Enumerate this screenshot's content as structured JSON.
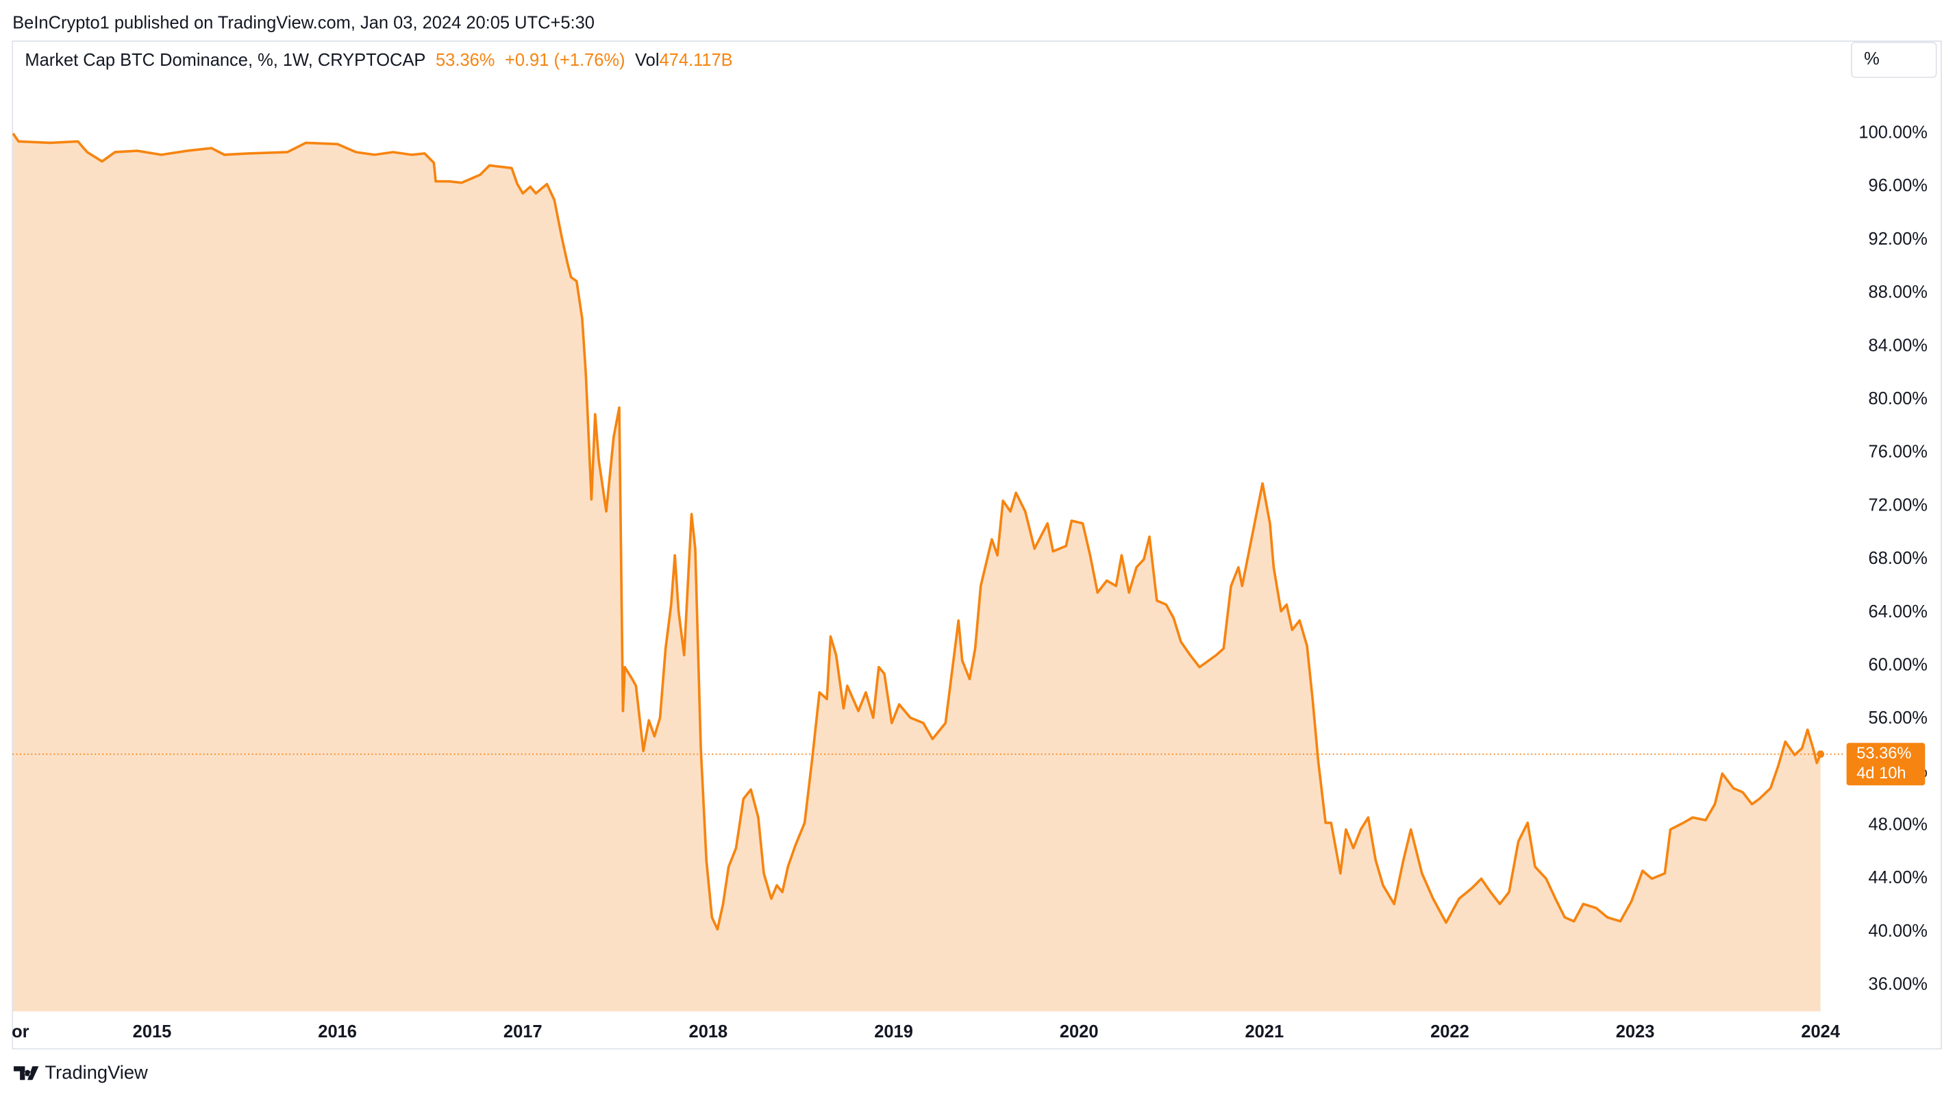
{
  "header": {
    "published": "BeInCrypto1 published on TradingView.com, Jan 03, 2024 20:05 UTC+5:30"
  },
  "chart_data": {
    "type": "area",
    "title": "Market Cap BTC Dominance, %, 1W, CRYPTOCAP",
    "change": "+0.91 (+1.76%)",
    "volume_label": "Vol",
    "volume": "474.117B",
    "current": {
      "value": 53.36,
      "label": "53.36%"
    },
    "countdown": "4d 10h",
    "scale_button": "%",
    "color": "#f68410",
    "fill": "#fce0c6",
    "xlim": [
      2014.247,
      2024.12
    ],
    "ylim": [
      34.03,
      106.75
    ],
    "xticks": [
      {
        "value": 2014.29,
        "label": "or"
      },
      2015,
      2016,
      2017,
      2018,
      2019,
      2020,
      2021,
      2022,
      2023,
      2024
    ],
    "yticks": [
      {
        "value": 36,
        "label": "36.00%"
      },
      {
        "value": 40,
        "label": "40.00%"
      },
      {
        "value": 44,
        "label": "44.00%"
      },
      {
        "value": 48,
        "label": "48.00%"
      },
      {
        "value": 52,
        "label": "52.00%"
      },
      {
        "value": 56,
        "label": "56.00%"
      },
      {
        "value": 60,
        "label": "60.00%"
      },
      {
        "value": 64,
        "label": "64.00%"
      },
      {
        "value": 68,
        "label": "68.00%"
      },
      {
        "value": 72,
        "label": "72.00%"
      },
      {
        "value": 76,
        "label": "76.00%"
      },
      {
        "value": 80,
        "label": "80.00%"
      },
      {
        "value": 84,
        "label": "84.00%"
      },
      {
        "value": 88,
        "label": "88.00%"
      },
      {
        "value": 92,
        "label": "92.00%"
      },
      {
        "value": 96,
        "label": "96.00%"
      },
      {
        "value": 100,
        "label": "100.00%"
      }
    ],
    "x": [
      2014.25,
      2014.28,
      2014.45,
      2014.6,
      2014.65,
      2014.73,
      2014.8,
      2014.92,
      2015.05,
      2015.19,
      2015.32,
      2015.39,
      2015.52,
      2015.73,
      2015.83,
      2016.0,
      2016.1,
      2016.2,
      2016.3,
      2016.4,
      2016.47,
      2016.52,
      2016.53,
      2016.6,
      2016.67,
      2016.77,
      2016.82,
      2016.94,
      2016.97,
      2017.0,
      2017.04,
      2017.07,
      2017.13,
      2017.17,
      2017.21,
      2017.24,
      2017.26,
      2017.29,
      2017.32,
      2017.34,
      2017.37,
      2017.39,
      2017.41,
      2017.45,
      2017.49,
      2017.52,
      2017.54,
      2017.55,
      2017.59,
      2017.61,
      2017.65,
      2017.68,
      2017.71,
      2017.74,
      2017.77,
      2017.8,
      2017.82,
      2017.84,
      2017.87,
      2017.91,
      2017.93,
      2017.96,
      2017.99,
      2018.02,
      2018.05,
      2018.08,
      2018.11,
      2018.15,
      2018.19,
      2018.23,
      2018.27,
      2018.3,
      2018.34,
      2018.37,
      2018.4,
      2018.43,
      2018.47,
      2018.52,
      2018.56,
      2018.6,
      2018.64,
      2018.66,
      2018.69,
      2018.73,
      2018.75,
      2018.81,
      2018.85,
      2018.89,
      2018.92,
      2018.95,
      2018.99,
      2019.03,
      2019.09,
      2019.16,
      2019.21,
      2019.28,
      2019.31,
      2019.35,
      2019.37,
      2019.41,
      2019.44,
      2019.47,
      2019.53,
      2019.56,
      2019.59,
      2019.63,
      2019.66,
      2019.71,
      2019.76,
      2019.83,
      2019.86,
      2019.93,
      2019.96,
      2020.02,
      2020.06,
      2020.1,
      2020.15,
      2020.2,
      2020.23,
      2020.27,
      2020.31,
      2020.35,
      2020.38,
      2020.42,
      2020.47,
      2020.51,
      2020.55,
      2020.6,
      2020.65,
      2020.7,
      2020.74,
      2020.78,
      2020.82,
      2020.86,
      2020.88,
      2020.92,
      2020.96,
      2020.99,
      2021.03,
      2021.05,
      2021.09,
      2021.12,
      2021.15,
      2021.19,
      2021.23,
      2021.26,
      2021.29,
      2021.33,
      2021.36,
      2021.41,
      2021.44,
      2021.48,
      2021.52,
      2021.56,
      2021.6,
      2021.64,
      2021.7,
      2021.75,
      2021.79,
      2021.85,
      2021.91,
      2021.98,
      2022.05,
      2022.12,
      2022.17,
      2022.22,
      2022.27,
      2022.32,
      2022.37,
      2022.42,
      2022.46,
      2022.52,
      2022.57,
      2022.62,
      2022.67,
      2022.72,
      2022.79,
      2022.85,
      2022.92,
      2022.98,
      2023.04,
      2023.09,
      2023.16,
      2023.19,
      2023.26,
      2023.31,
      2023.38,
      2023.43,
      2023.47,
      2023.53,
      2023.58,
      2023.63,
      2023.67,
      2023.73,
      2023.77,
      2023.81,
      2023.86,
      2023.9,
      2023.93,
      2023.96,
      2023.98,
      2024.0
    ],
    "values": [
      100.0,
      99.4,
      99.3,
      99.4,
      98.6,
      97.9,
      98.6,
      98.7,
      98.4,
      98.7,
      98.9,
      98.4,
      98.5,
      98.6,
      99.3,
      99.2,
      98.6,
      98.4,
      98.6,
      98.4,
      98.5,
      97.8,
      96.4,
      96.4,
      96.3,
      96.9,
      97.6,
      97.4,
      96.2,
      95.5,
      96.0,
      95.5,
      96.2,
      95.0,
      92.2,
      90.3,
      89.2,
      88.9,
      86.1,
      81.9,
      72.5,
      78.9,
      75.4,
      71.6,
      77.2,
      79.4,
      56.6,
      59.9,
      59.0,
      58.5,
      53.6,
      55.9,
      54.7,
      56.1,
      61.3,
      64.6,
      68.3,
      64.1,
      60.8,
      71.4,
      68.8,
      53.8,
      45.4,
      41.1,
      40.2,
      42.1,
      44.9,
      46.3,
      50.0,
      50.7,
      48.6,
      44.4,
      42.5,
      43.5,
      43.0,
      44.9,
      46.5,
      48.2,
      52.9,
      58.0,
      57.5,
      62.2,
      60.8,
      56.8,
      58.5,
      56.6,
      58.0,
      56.1,
      59.9,
      59.4,
      55.7,
      57.1,
      56.1,
      55.7,
      54.5,
      55.7,
      59.0,
      63.4,
      60.4,
      59.0,
      61.3,
      66.0,
      69.5,
      68.3,
      72.4,
      71.6,
      73.0,
      71.6,
      68.8,
      70.7,
      68.6,
      69.0,
      70.9,
      70.7,
      68.3,
      65.5,
      66.4,
      66.0,
      68.3,
      65.5,
      67.4,
      68.0,
      69.7,
      64.9,
      64.6,
      63.6,
      61.8,
      60.8,
      59.9,
      60.4,
      60.8,
      61.3,
      66.0,
      67.4,
      66.0,
      68.8,
      71.6,
      73.7,
      70.7,
      67.4,
      64.1,
      64.6,
      62.7,
      63.4,
      61.5,
      57.5,
      52.9,
      48.2,
      48.2,
      44.4,
      47.7,
      46.3,
      47.7,
      48.6,
      45.4,
      43.5,
      42.1,
      45.4,
      47.7,
      44.4,
      42.5,
      40.7,
      42.5,
      43.3,
      44.0,
      43.0,
      42.1,
      43.0,
      46.8,
      48.2,
      44.9,
      44.0,
      42.5,
      41.1,
      40.8,
      42.1,
      41.8,
      41.1,
      40.8,
      42.3,
      44.6,
      44.0,
      44.4,
      47.7,
      48.2,
      48.6,
      48.4,
      49.6,
      51.9,
      50.8,
      50.5,
      49.6,
      50.0,
      50.8,
      52.4,
      54.3,
      53.3,
      53.8,
      55.2,
      53.8,
      52.7,
      53.36
    ]
  },
  "footer": {
    "brand": "TradingView"
  }
}
